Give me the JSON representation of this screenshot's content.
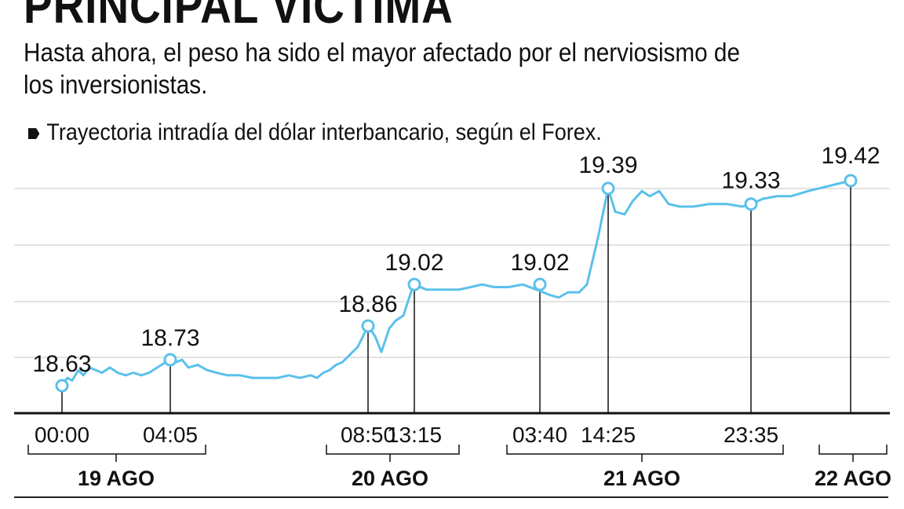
{
  "title": "PRINCIPAL VÍCTIMA",
  "subtitle": "Hasta ahora, el peso ha sido el mayor afectado por el nerviosismo de los inversionistas.",
  "note": "Trayectoria intradía del dólar interbancario, según el Forex.",
  "colors": {
    "line": "#5bc0eb",
    "grid": "#d9d9d9",
    "axis": "#111111",
    "text": "#111111"
  },
  "chart_data": {
    "type": "line",
    "title": "",
    "xlabel": "",
    "ylabel": "",
    "ylim": [
      18.55,
      19.45
    ],
    "grid": true,
    "series": [
      {
        "values": [
          18.63,
          18.66,
          18.65,
          18.69,
          18.67,
          18.7,
          18.69,
          18.68,
          18.7,
          18.68,
          18.67,
          18.68,
          18.67,
          18.68,
          18.73,
          18.72,
          18.73,
          18.7,
          18.71,
          18.69,
          18.68,
          18.67,
          18.67,
          18.66,
          18.66,
          18.66,
          18.67,
          18.66,
          18.67,
          18.66,
          18.68,
          18.69,
          18.71,
          18.72,
          18.75,
          18.78,
          18.86,
          18.82,
          18.76,
          18.85,
          18.88,
          18.9,
          19.02,
          19.0,
          19.0,
          19.0,
          19.01,
          19.02,
          19.01,
          19.01,
          19.02,
          19.0,
          18.98,
          18.97,
          18.99,
          18.99,
          19.02,
          19.2,
          19.39,
          19.3,
          19.29,
          19.34,
          19.38,
          19.36,
          19.38,
          19.33,
          19.32,
          19.32,
          19.33,
          19.33,
          19.32,
          19.33,
          19.35,
          19.36,
          19.36,
          19.38,
          19.42
        ]
      }
    ],
    "annotations": [
      {
        "value": 18.63,
        "label": "18.63",
        "time": "00:00"
      },
      {
        "value": 18.73,
        "label": "18.73",
        "time": "04:05"
      },
      {
        "value": 18.86,
        "label": "18.86",
        "time": "08:50"
      },
      {
        "value": 19.02,
        "label": "19.02",
        "time": "13:15"
      },
      {
        "value": 19.02,
        "label": "19.02",
        "time": "03:40"
      },
      {
        "value": 19.39,
        "label": "19.39",
        "time": "14:25"
      },
      {
        "value": 19.33,
        "label": "19.33",
        "time": "23:35"
      },
      {
        "value": 19.42,
        "label": "19.42",
        "time": ""
      }
    ],
    "days": [
      "19 AGO",
      "20 AGO",
      "21 AGO",
      "22 AGO"
    ]
  }
}
